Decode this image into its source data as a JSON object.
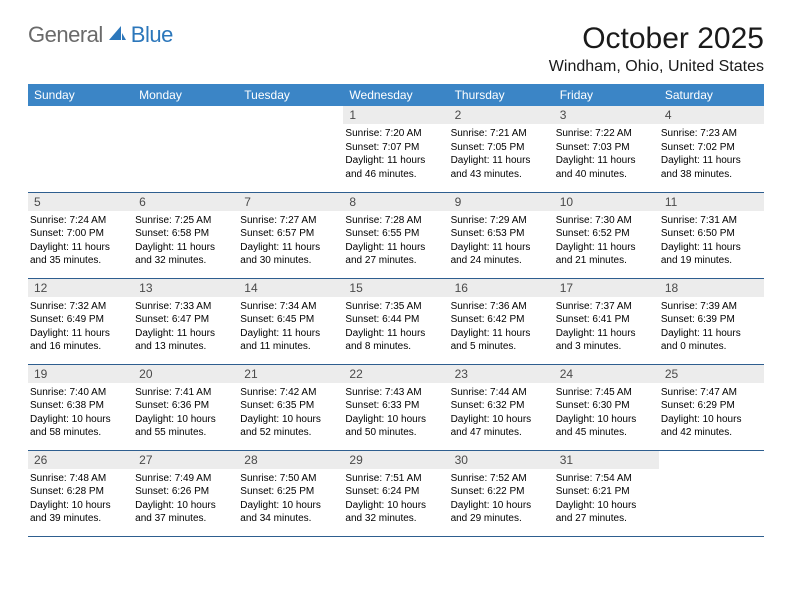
{
  "logo": {
    "word1": "General",
    "word2": "Blue"
  },
  "title": "October 2025",
  "location": "Windham, Ohio, United States",
  "colors": {
    "header_bg": "#3b85c6",
    "header_text": "#ffffff",
    "rule": "#2e5e8f",
    "daynum_bg": "#ececec",
    "logo_gray": "#6a6a6a",
    "logo_blue": "#2c77bb"
  },
  "daysOfWeek": [
    "Sunday",
    "Monday",
    "Tuesday",
    "Wednesday",
    "Thursday",
    "Friday",
    "Saturday"
  ],
  "weeks": [
    [
      {
        "n": "",
        "sr": "",
        "ss": "",
        "dl": ""
      },
      {
        "n": "",
        "sr": "",
        "ss": "",
        "dl": ""
      },
      {
        "n": "",
        "sr": "",
        "ss": "",
        "dl": ""
      },
      {
        "n": "1",
        "sr": "7:20 AM",
        "ss": "7:07 PM",
        "dl": "11 hours and 46 minutes."
      },
      {
        "n": "2",
        "sr": "7:21 AM",
        "ss": "7:05 PM",
        "dl": "11 hours and 43 minutes."
      },
      {
        "n": "3",
        "sr": "7:22 AM",
        "ss": "7:03 PM",
        "dl": "11 hours and 40 minutes."
      },
      {
        "n": "4",
        "sr": "7:23 AM",
        "ss": "7:02 PM",
        "dl": "11 hours and 38 minutes."
      }
    ],
    [
      {
        "n": "5",
        "sr": "7:24 AM",
        "ss": "7:00 PM",
        "dl": "11 hours and 35 minutes."
      },
      {
        "n": "6",
        "sr": "7:25 AM",
        "ss": "6:58 PM",
        "dl": "11 hours and 32 minutes."
      },
      {
        "n": "7",
        "sr": "7:27 AM",
        "ss": "6:57 PM",
        "dl": "11 hours and 30 minutes."
      },
      {
        "n": "8",
        "sr": "7:28 AM",
        "ss": "6:55 PM",
        "dl": "11 hours and 27 minutes."
      },
      {
        "n": "9",
        "sr": "7:29 AM",
        "ss": "6:53 PM",
        "dl": "11 hours and 24 minutes."
      },
      {
        "n": "10",
        "sr": "7:30 AM",
        "ss": "6:52 PM",
        "dl": "11 hours and 21 minutes."
      },
      {
        "n": "11",
        "sr": "7:31 AM",
        "ss": "6:50 PM",
        "dl": "11 hours and 19 minutes."
      }
    ],
    [
      {
        "n": "12",
        "sr": "7:32 AM",
        "ss": "6:49 PM",
        "dl": "11 hours and 16 minutes."
      },
      {
        "n": "13",
        "sr": "7:33 AM",
        "ss": "6:47 PM",
        "dl": "11 hours and 13 minutes."
      },
      {
        "n": "14",
        "sr": "7:34 AM",
        "ss": "6:45 PM",
        "dl": "11 hours and 11 minutes."
      },
      {
        "n": "15",
        "sr": "7:35 AM",
        "ss": "6:44 PM",
        "dl": "11 hours and 8 minutes."
      },
      {
        "n": "16",
        "sr": "7:36 AM",
        "ss": "6:42 PM",
        "dl": "11 hours and 5 minutes."
      },
      {
        "n": "17",
        "sr": "7:37 AM",
        "ss": "6:41 PM",
        "dl": "11 hours and 3 minutes."
      },
      {
        "n": "18",
        "sr": "7:39 AM",
        "ss": "6:39 PM",
        "dl": "11 hours and 0 minutes."
      }
    ],
    [
      {
        "n": "19",
        "sr": "7:40 AM",
        "ss": "6:38 PM",
        "dl": "10 hours and 58 minutes."
      },
      {
        "n": "20",
        "sr": "7:41 AM",
        "ss": "6:36 PM",
        "dl": "10 hours and 55 minutes."
      },
      {
        "n": "21",
        "sr": "7:42 AM",
        "ss": "6:35 PM",
        "dl": "10 hours and 52 minutes."
      },
      {
        "n": "22",
        "sr": "7:43 AM",
        "ss": "6:33 PM",
        "dl": "10 hours and 50 minutes."
      },
      {
        "n": "23",
        "sr": "7:44 AM",
        "ss": "6:32 PM",
        "dl": "10 hours and 47 minutes."
      },
      {
        "n": "24",
        "sr": "7:45 AM",
        "ss": "6:30 PM",
        "dl": "10 hours and 45 minutes."
      },
      {
        "n": "25",
        "sr": "7:47 AM",
        "ss": "6:29 PM",
        "dl": "10 hours and 42 minutes."
      }
    ],
    [
      {
        "n": "26",
        "sr": "7:48 AM",
        "ss": "6:28 PM",
        "dl": "10 hours and 39 minutes."
      },
      {
        "n": "27",
        "sr": "7:49 AM",
        "ss": "6:26 PM",
        "dl": "10 hours and 37 minutes."
      },
      {
        "n": "28",
        "sr": "7:50 AM",
        "ss": "6:25 PM",
        "dl": "10 hours and 34 minutes."
      },
      {
        "n": "29",
        "sr": "7:51 AM",
        "ss": "6:24 PM",
        "dl": "10 hours and 32 minutes."
      },
      {
        "n": "30",
        "sr": "7:52 AM",
        "ss": "6:22 PM",
        "dl": "10 hours and 29 minutes."
      },
      {
        "n": "31",
        "sr": "7:54 AM",
        "ss": "6:21 PM",
        "dl": "10 hours and 27 minutes."
      },
      {
        "n": "",
        "sr": "",
        "ss": "",
        "dl": ""
      }
    ]
  ],
  "labels": {
    "sunrise": "Sunrise:",
    "sunset": "Sunset:",
    "daylight": "Daylight:"
  }
}
